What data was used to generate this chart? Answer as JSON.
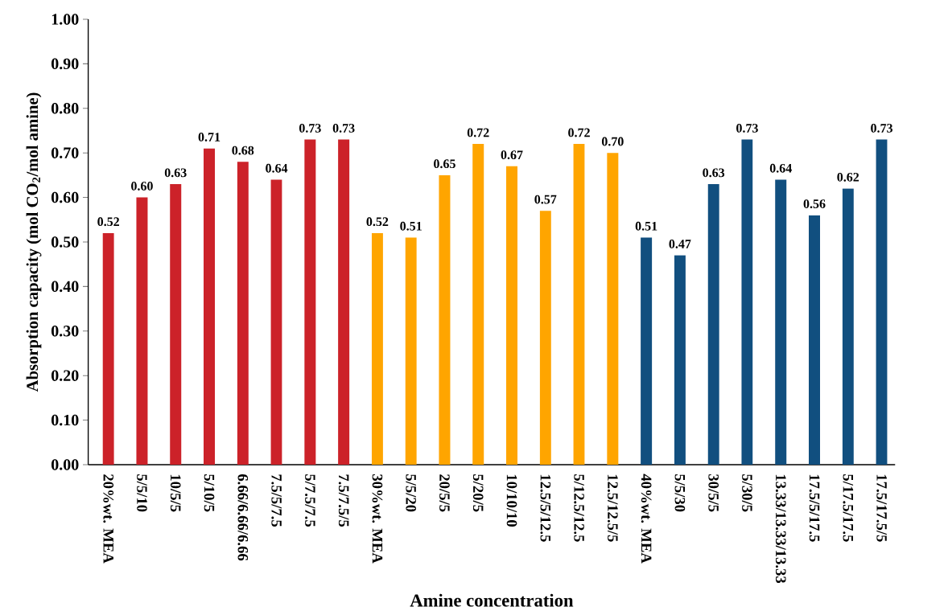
{
  "chart_data": {
    "type": "bar",
    "ylabel": "Absorption capacity (mol CO$_{2}$/mol amine)",
    "xlabel": "Amine concentration",
    "categories": [
      "20%wt. MEA",
      "5/5/10",
      "10/5/5",
      "5/10/5",
      "6.66/6.66/6.66",
      "7.5/5/7.5",
      "5/7.5/7.5",
      "7.5/7.5/5",
      "30%wt. MEA",
      "5/5/20",
      "20/5/5",
      "5/20/5",
      "10/10/10",
      "12.5/5/12.5",
      "5/12.5/12.5",
      "12.5/12.5/5",
      "40%wt. MEA",
      "5/5/30",
      "30/5/5",
      "5/30/5",
      "13.33/13.33/13.33",
      "17.5/5/17.5",
      "5/17.5/17.5",
      "17.5/17.5/5"
    ],
    "values": [
      0.52,
      0.6,
      0.63,
      0.71,
      0.68,
      0.64,
      0.73,
      0.73,
      0.52,
      0.51,
      0.65,
      0.72,
      0.67,
      0.57,
      0.72,
      0.7,
      0.51,
      0.47,
      0.63,
      0.73,
      0.64,
      0.56,
      0.62,
      0.73
    ],
    "colors": [
      "#cc2229",
      "#cc2229",
      "#cc2229",
      "#cc2229",
      "#cc2229",
      "#cc2229",
      "#cc2229",
      "#cc2229",
      "#ffa500",
      "#ffa500",
      "#ffa500",
      "#ffa500",
      "#ffa500",
      "#ffa500",
      "#ffa500",
      "#ffa500",
      "#114f7f",
      "#114f7f",
      "#114f7f",
      "#114f7f",
      "#114f7f",
      "#114f7f",
      "#114f7f",
      "#114f7f"
    ],
    "ylim": [
      0,
      1
    ],
    "yticks": [
      {
        "value": 0,
        "label": "0.00"
      },
      {
        "value": 0.1,
        "label": "0.10"
      },
      {
        "value": 0.2,
        "label": "0.20"
      },
      {
        "value": 0.3,
        "label": "0.30"
      },
      {
        "value": 0.4,
        "label": "0.40"
      },
      {
        "value": 0.5,
        "label": "0.50"
      },
      {
        "value": 0.6,
        "label": "0.60"
      },
      {
        "value": 0.7,
        "label": "0.70"
      },
      {
        "value": 0.8,
        "label": "0.80"
      },
      {
        "value": 0.9,
        "label": "0.90"
      },
      {
        "value": 1,
        "label": "1.00"
      }
    ],
    "value_labels": [
      "0.52",
      "0.60",
      "0.63",
      "0.71",
      "0.68",
      "0.64",
      "0.73",
      "0.73",
      "0.52",
      "0.51",
      "0.65",
      "0.72",
      "0.67",
      "0.57",
      "0.72",
      "0.70",
      "0.51",
      "0.47",
      "0.63",
      "0.73",
      "0.64",
      "0.56",
      "0.62",
      "0.73"
    ],
    "grid": false
  }
}
